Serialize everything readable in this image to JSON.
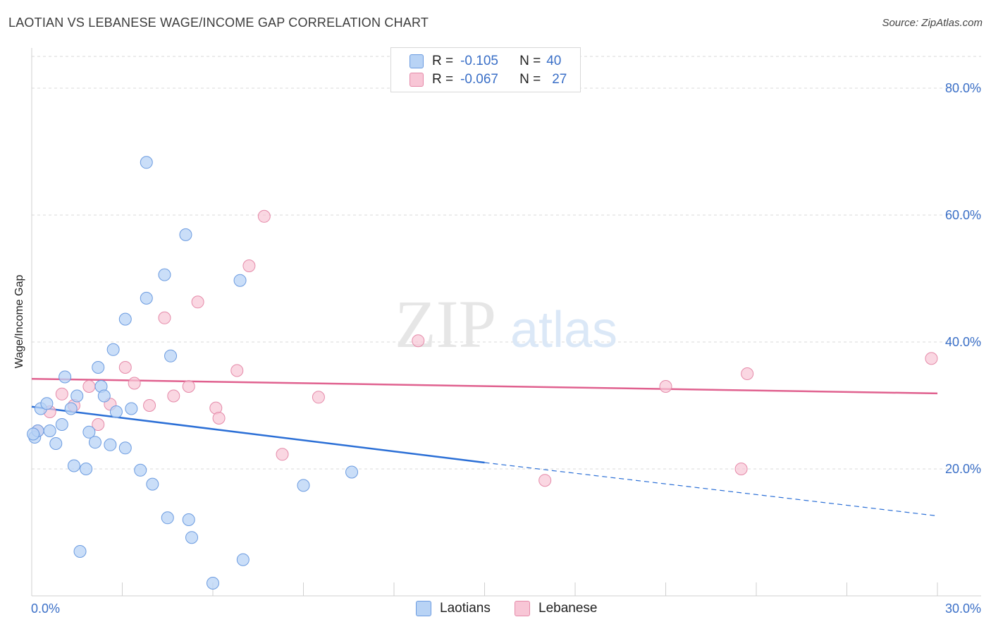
{
  "header": {
    "title": "LAOTIAN VS LEBANESE WAGE/INCOME GAP CORRELATION CHART",
    "source": "Source: ZipAtlas.com"
  },
  "legend": {
    "rows": [
      {
        "r_label": "R =",
        "r_value": "-0.105",
        "n_label": "N =",
        "n_value": "40"
      },
      {
        "r_label": "R =",
        "r_value": "-0.067",
        "n_label": "N =",
        "n_value": "27"
      }
    ]
  },
  "watermark": {
    "zip": "ZIP",
    "atlas": "atlas"
  },
  "colors": {
    "laotians_fill": "#b8d3f5",
    "laotians_stroke": "#6b9be0",
    "laotians_line": "#2b6fd6",
    "lebanese_fill": "#f8c6d6",
    "lebanese_stroke": "#e58aa9",
    "lebanese_line": "#e0618f"
  },
  "chart_data": {
    "type": "scatter",
    "title": "LAOTIAN VS LEBANESE WAGE/INCOME GAP CORRELATION CHART",
    "xlabel": "",
    "ylabel": "Wage/Income Gap",
    "xlim": [
      0,
      30
    ],
    "ylim": [
      0,
      85
    ],
    "x_tick_labels": [
      "0.0%",
      "30.0%"
    ],
    "y_ticks": [
      20,
      40,
      60,
      80
    ],
    "y_tick_labels": [
      "20.0%",
      "40.0%",
      "60.0%",
      "80.0%"
    ],
    "grid": true,
    "legend_position": "bottom-center",
    "series": [
      {
        "name": "Laotians",
        "points": [
          [
            0.1,
            25.0
          ],
          [
            0.2,
            26.0
          ],
          [
            0.3,
            29.5
          ],
          [
            0.5,
            30.3
          ],
          [
            0.6,
            26.0
          ],
          [
            0.8,
            24.0
          ],
          [
            1.0,
            27.0
          ],
          [
            1.1,
            34.5
          ],
          [
            1.3,
            29.5
          ],
          [
            1.4,
            20.5
          ],
          [
            1.5,
            31.5
          ],
          [
            1.6,
            7.0
          ],
          [
            1.8,
            20.0
          ],
          [
            1.9,
            25.8
          ],
          [
            2.1,
            24.2
          ],
          [
            2.2,
            36.0
          ],
          [
            2.3,
            33.0
          ],
          [
            2.4,
            31.5
          ],
          [
            2.6,
            23.8
          ],
          [
            2.7,
            38.8
          ],
          [
            2.8,
            29.0
          ],
          [
            3.1,
            23.3
          ],
          [
            3.1,
            43.6
          ],
          [
            3.3,
            29.5
          ],
          [
            3.6,
            19.8
          ],
          [
            3.8,
            46.9
          ],
          [
            4.0,
            17.6
          ],
          [
            4.4,
            50.6
          ],
          [
            4.5,
            12.3
          ],
          [
            4.6,
            37.8
          ],
          [
            5.1,
            56.9
          ],
          [
            5.2,
            12.0
          ],
          [
            5.3,
            9.2
          ],
          [
            3.8,
            68.3
          ],
          [
            6.0,
            2.0
          ],
          [
            6.9,
            49.7
          ],
          [
            7.0,
            5.7
          ],
          [
            9.0,
            17.4
          ],
          [
            10.6,
            19.5
          ],
          [
            0.05,
            25.5
          ]
        ],
        "trend": {
          "x0": 0,
          "y0": 29.8,
          "x1": 15,
          "y1": 21.0,
          "dashed_to_x": 30,
          "dashed_to_y": 12.6
        }
      },
      {
        "name": "Lebanese",
        "points": [
          [
            0.2,
            26.0
          ],
          [
            0.6,
            29.0
          ],
          [
            1.0,
            31.8
          ],
          [
            1.4,
            30.0
          ],
          [
            1.9,
            33.0
          ],
          [
            2.2,
            27.0
          ],
          [
            2.6,
            30.2
          ],
          [
            3.1,
            36.0
          ],
          [
            3.4,
            33.5
          ],
          [
            3.9,
            30.0
          ],
          [
            4.4,
            43.8
          ],
          [
            4.7,
            31.5
          ],
          [
            5.2,
            33.0
          ],
          [
            5.5,
            46.3
          ],
          [
            6.1,
            29.6
          ],
          [
            6.2,
            28.0
          ],
          [
            6.8,
            35.5
          ],
          [
            7.2,
            52.0
          ],
          [
            7.7,
            59.8
          ],
          [
            8.3,
            22.3
          ],
          [
            9.5,
            31.3
          ],
          [
            12.8,
            40.2
          ],
          [
            17.0,
            18.2
          ],
          [
            21.0,
            33.0
          ],
          [
            23.5,
            20.0
          ],
          [
            23.7,
            35.0
          ],
          [
            29.8,
            37.4
          ]
        ],
        "trend": {
          "x0": 0,
          "y0": 34.2,
          "x1": 30,
          "y1": 31.9
        }
      }
    ]
  },
  "bottom_legend": {
    "laotians": "Laotians",
    "lebanese": "Lebanese"
  }
}
